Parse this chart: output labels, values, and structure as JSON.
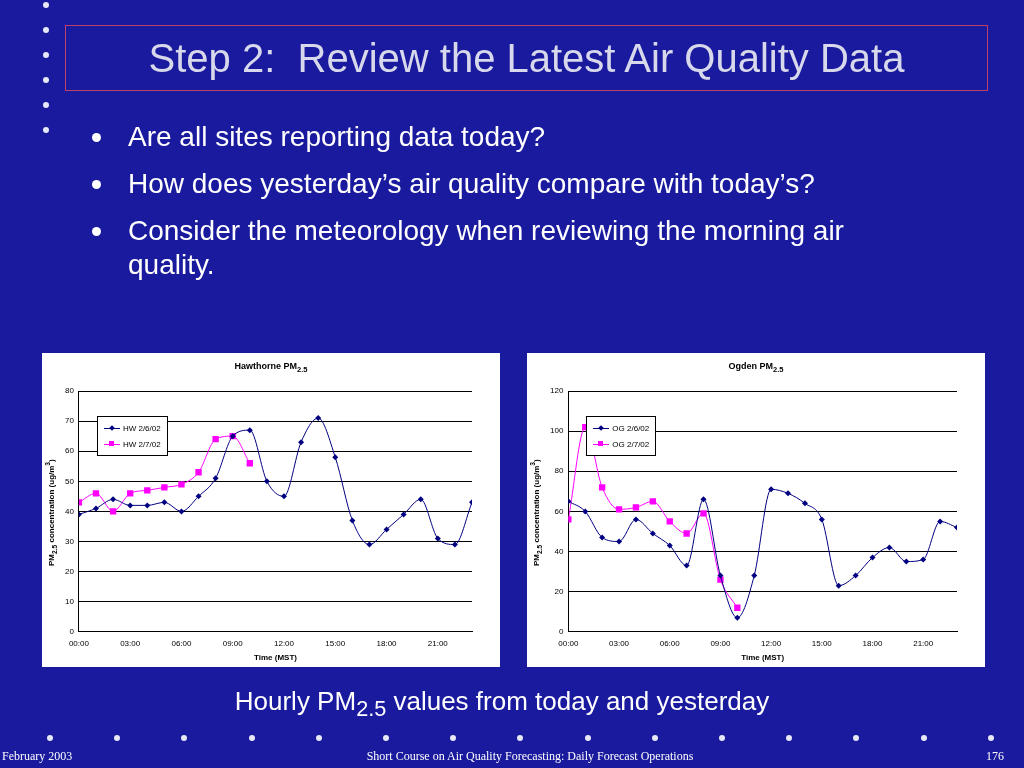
{
  "chart_data": [
    {
      "type": "other",
      "title": "Step 2:  Review the Latest Air Quality Data",
      "annotations": [
        "Are all sites reporting data today?",
        "How does yesterday’s air quality compare with today’s?",
        "Consider the meteorology when reviewing the morning air quality.",
        "Hourly PM$_{2.5}$ values from today and yesterday",
        "February 2003",
        "Short Course on Air Quality Forecasting: Daily Forecast Operations",
        "176"
      ]
    },
    {
      "type": "line",
      "title": "Hawthorne PM$_{2.5}$",
      "xlabel": "Time (MST)",
      "ylabel": "PM$_{2.5}$ concentration (ug/m$^{3}$)",
      "xlim": [
        0,
        23
      ],
      "xticks": [
        {
          "value": 0,
          "label": "00:00"
        },
        {
          "value": 3,
          "label": "03:00"
        },
        {
          "value": 6,
          "label": "06:00"
        },
        {
          "value": 9,
          "label": "09:00"
        },
        {
          "value": 12,
          "label": "12:00"
        },
        {
          "value": 15,
          "label": "15:00"
        },
        {
          "value": 18,
          "label": "18:00"
        },
        {
          "value": 21,
          "label": "21:00"
        }
      ],
      "ylim": [
        0,
        80
      ],
      "yticks": [
        0,
        10,
        20,
        30,
        40,
        50,
        60,
        70,
        80
      ],
      "grid": "y",
      "legend": "top left",
      "line_style": "solid",
      "series": [
        {
          "name": "HW 2/6/02",
          "color": "#000080",
          "marker": "diamond",
          "x": [
            0,
            1,
            2,
            3,
            4,
            5,
            6,
            7,
            8,
            9,
            10,
            11,
            12,
            13,
            14,
            15,
            16,
            17,
            18,
            19,
            20,
            21,
            22,
            23
          ],
          "values": [
            39,
            41,
            44,
            42,
            42,
            43,
            40,
            45,
            51,
            65,
            67,
            50,
            45,
            63,
            71,
            58,
            37,
            29,
            34,
            39,
            44,
            31,
            29,
            43
          ]
        },
        {
          "name": "HW 2/7/02",
          "color": "#ff00ff",
          "marker": "square",
          "x": [
            0,
            1,
            2,
            3,
            4,
            5,
            6,
            7,
            8,
            9,
            10
          ],
          "values": [
            43,
            46,
            40,
            46,
            47,
            48,
            49,
            53,
            64,
            65,
            56
          ]
        }
      ]
    },
    {
      "type": "line",
      "title": "Ogden PM$_{2.5}$",
      "xlabel": "Time (MST)",
      "ylabel": "PM$_{2.5}$ concentration (ug/m$^{3}$)",
      "xlim": [
        0,
        23
      ],
      "xticks": [
        {
          "value": 0,
          "label": "00:00"
        },
        {
          "value": 3,
          "label": "03:00"
        },
        {
          "value": 6,
          "label": "06:00"
        },
        {
          "value": 9,
          "label": "09:00"
        },
        {
          "value": 12,
          "label": "12:00"
        },
        {
          "value": 15,
          "label": "15:00"
        },
        {
          "value": 18,
          "label": "18:00"
        },
        {
          "value": 21,
          "label": "21:00"
        }
      ],
      "ylim": [
        0,
        120
      ],
      "yticks": [
        0,
        20,
        40,
        60,
        80,
        100,
        120
      ],
      "grid": "y",
      "legend": "top left",
      "line_style": "solid",
      "series": [
        {
          "name": "OG 2/6/02",
          "color": "#000080",
          "marker": "diamond",
          "x": [
            0,
            1,
            2,
            3,
            4,
            5,
            6,
            7,
            8,
            9,
            10,
            11,
            12,
            13,
            14,
            15,
            16,
            17,
            18,
            19,
            20,
            21,
            22,
            23
          ],
          "values": [
            65,
            60,
            47,
            45,
            56,
            49,
            43,
            33,
            66,
            28,
            7,
            28,
            71,
            69,
            64,
            56,
            23,
            28,
            37,
            42,
            35,
            36,
            55,
            52
          ]
        },
        {
          "name": "OG 2/7/02",
          "color": "#ff00ff",
          "marker": "square",
          "x": [
            0,
            1,
            2,
            3,
            4,
            5,
            6,
            7,
            8,
            9,
            10
          ],
          "values": [
            56,
            102,
            72,
            61,
            62,
            65,
            55,
            49,
            59,
            26,
            12
          ]
        }
      ]
    }
  ]
}
